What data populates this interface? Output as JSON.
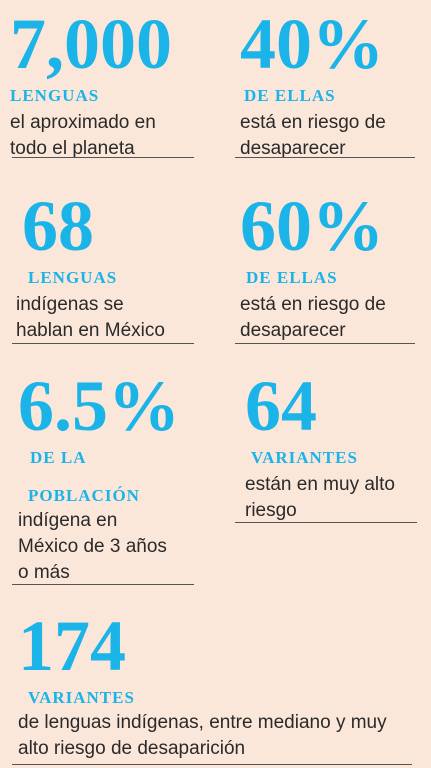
{
  "stats": [
    {
      "number": "7,000",
      "label": "LENGUAS",
      "desc_lines": [
        "el aproximado en",
        "todo el planeta"
      ]
    },
    {
      "number": "40%",
      "label": "DE ELLAS",
      "desc_lines": [
        "está en riesgo de",
        "desaparecer"
      ]
    },
    {
      "number": "68",
      "label": "LENGUAS",
      "desc_lines": [
        "indígenas se",
        "hablan en México"
      ]
    },
    {
      "number": "60%",
      "label": "DE ELLAS",
      "desc_lines": [
        "está en riesgo de",
        "desaparecer"
      ]
    },
    {
      "number": "6.5%",
      "label_lines": [
        "DE LA",
        "POBLACIÓN"
      ],
      "desc_lines": [
        "indígena en",
        "México de 3 años",
        "o más"
      ]
    },
    {
      "number": "64",
      "label": "VARIANTES",
      "desc_lines": [
        "están en muy alto",
        "riesgo"
      ]
    },
    {
      "number": "174",
      "label": "VARIANTES",
      "desc_lines": [
        "de lenguas indígenas, entre mediano y muy",
        "alto riesgo de desaparición"
      ]
    }
  ],
  "colors": {
    "accent": "#1ab4e8",
    "background": "#fbe6da",
    "text": "#2a2a2a"
  }
}
